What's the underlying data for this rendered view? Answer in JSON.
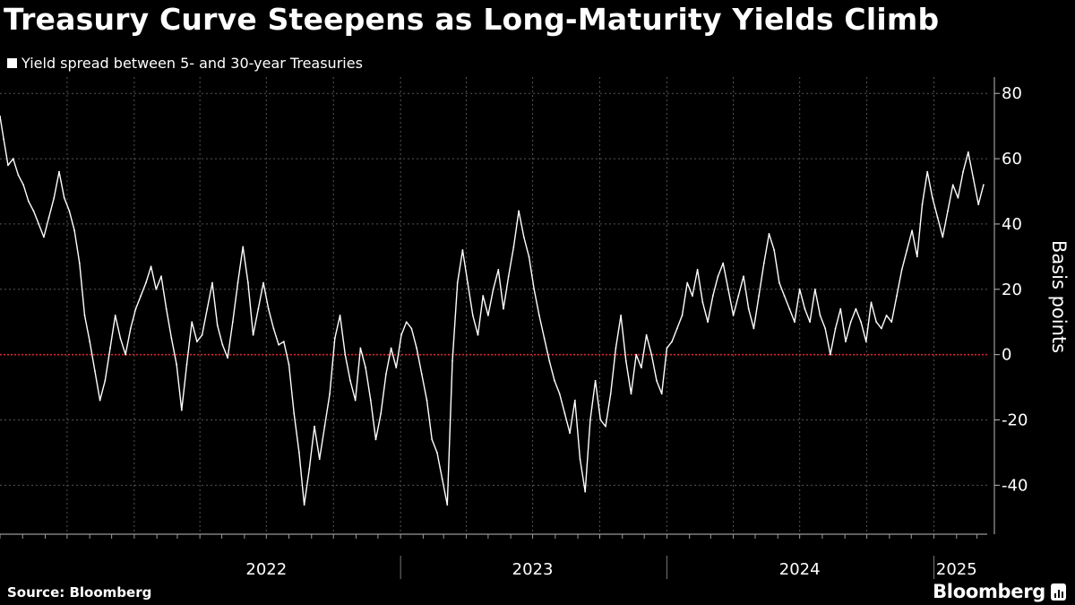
{
  "title": "Treasury Curve Steepens as Long-Maturity Yields Climb",
  "source": "Source: Bloomberg",
  "brand": "Bloomberg",
  "colors": {
    "background": "#000000",
    "series": "#ffffff",
    "zero_line": "#d6262b",
    "grid": "#555555"
  },
  "chart_data": {
    "type": "line",
    "legend": {
      "position": "top-left",
      "entries": [
        "Yield spread between 5- and 30-year Treasuries"
      ]
    },
    "ylabel": "Basis points",
    "ylim": [
      -55,
      85
    ],
    "yticks": [
      80,
      60,
      40,
      20,
      0,
      -20,
      -40
    ],
    "xlim": [
      "2021-07-01",
      "2025-03-15"
    ],
    "xtick_labels": [
      {
        "label": "2022",
        "date": "2022-07-01"
      },
      {
        "label": "2023",
        "date": "2023-07-01"
      },
      {
        "label": "2024",
        "date": "2024-07-01"
      },
      {
        "label": "2025",
        "date": "2025-02-01"
      }
    ],
    "year_dividers": [
      "2023-01-01",
      "2024-01-01",
      "2025-01-01"
    ],
    "grid": true,
    "reference_line": {
      "y": 0,
      "style": "dotted",
      "color": "#d6262b"
    },
    "series": [
      {
        "name": "Yield spread between 5- and 30-year Treasuries",
        "points": [
          [
            "2021-07-01",
            73
          ],
          [
            "2021-07-06",
            66
          ],
          [
            "2021-07-12",
            58
          ],
          [
            "2021-07-19",
            60
          ],
          [
            "2021-07-26",
            55
          ],
          [
            "2021-08-02",
            52
          ],
          [
            "2021-08-09",
            47
          ],
          [
            "2021-08-16",
            44
          ],
          [
            "2021-08-23",
            40
          ],
          [
            "2021-08-30",
            36
          ],
          [
            "2021-09-06",
            42
          ],
          [
            "2021-09-13",
            48
          ],
          [
            "2021-09-20",
            56
          ],
          [
            "2021-09-27",
            48
          ],
          [
            "2021-10-04",
            44
          ],
          [
            "2021-10-11",
            38
          ],
          [
            "2021-10-18",
            28
          ],
          [
            "2021-10-25",
            12
          ],
          [
            "2021-11-01",
            4
          ],
          [
            "2021-11-08",
            -5
          ],
          [
            "2021-11-15",
            -14
          ],
          [
            "2021-11-22",
            -8
          ],
          [
            "2021-11-29",
            2
          ],
          [
            "2021-12-06",
            12
          ],
          [
            "2021-12-13",
            5
          ],
          [
            "2021-12-20",
            0
          ],
          [
            "2021-12-27",
            8
          ],
          [
            "2022-01-03",
            14
          ],
          [
            "2022-01-10",
            18
          ],
          [
            "2022-01-17",
            22
          ],
          [
            "2022-01-24",
            27
          ],
          [
            "2022-01-31",
            20
          ],
          [
            "2022-02-07",
            24
          ],
          [
            "2022-02-14",
            14
          ],
          [
            "2022-02-21",
            5
          ],
          [
            "2022-02-28",
            -3
          ],
          [
            "2022-03-07",
            -17
          ],
          [
            "2022-03-14",
            -3
          ],
          [
            "2022-03-21",
            10
          ],
          [
            "2022-03-28",
            4
          ],
          [
            "2022-04-04",
            6
          ],
          [
            "2022-04-11",
            14
          ],
          [
            "2022-04-18",
            22
          ],
          [
            "2022-04-25",
            9
          ],
          [
            "2022-05-02",
            3
          ],
          [
            "2022-05-09",
            -1
          ],
          [
            "2022-05-16",
            10
          ],
          [
            "2022-05-23",
            22
          ],
          [
            "2022-05-30",
            33
          ],
          [
            "2022-06-06",
            22
          ],
          [
            "2022-06-13",
            6
          ],
          [
            "2022-06-20",
            14
          ],
          [
            "2022-06-27",
            22
          ],
          [
            "2022-07-04",
            14
          ],
          [
            "2022-07-11",
            8
          ],
          [
            "2022-07-18",
            3
          ],
          [
            "2022-07-25",
            4
          ],
          [
            "2022-08-01",
            -3
          ],
          [
            "2022-08-08",
            -18
          ],
          [
            "2022-08-15",
            -30
          ],
          [
            "2022-08-22",
            -46
          ],
          [
            "2022-08-29",
            -35
          ],
          [
            "2022-09-05",
            -22
          ],
          [
            "2022-09-12",
            -32
          ],
          [
            "2022-09-19",
            -22
          ],
          [
            "2022-09-26",
            -12
          ],
          [
            "2022-10-03",
            5
          ],
          [
            "2022-10-10",
            12
          ],
          [
            "2022-10-17",
            0
          ],
          [
            "2022-10-24",
            -8
          ],
          [
            "2022-10-31",
            -14
          ],
          [
            "2022-11-07",
            2
          ],
          [
            "2022-11-14",
            -4
          ],
          [
            "2022-11-21",
            -14
          ],
          [
            "2022-11-28",
            -26
          ],
          [
            "2022-12-05",
            -18
          ],
          [
            "2022-12-12",
            -6
          ],
          [
            "2022-12-19",
            2
          ],
          [
            "2022-12-26",
            -4
          ],
          [
            "2023-01-02",
            6
          ],
          [
            "2023-01-09",
            10
          ],
          [
            "2023-01-16",
            8
          ],
          [
            "2023-01-23",
            2
          ],
          [
            "2023-01-30",
            -6
          ],
          [
            "2023-02-06",
            -14
          ],
          [
            "2023-02-13",
            -26
          ],
          [
            "2023-02-20",
            -30
          ],
          [
            "2023-02-27",
            -38
          ],
          [
            "2023-03-06",
            -46
          ],
          [
            "2023-03-13",
            -2
          ],
          [
            "2023-03-20",
            22
          ],
          [
            "2023-03-27",
            32
          ],
          [
            "2023-04-03",
            22
          ],
          [
            "2023-04-10",
            12
          ],
          [
            "2023-04-17",
            6
          ],
          [
            "2023-04-24",
            18
          ],
          [
            "2023-05-01",
            12
          ],
          [
            "2023-05-08",
            20
          ],
          [
            "2023-05-15",
            26
          ],
          [
            "2023-05-22",
            14
          ],
          [
            "2023-05-29",
            24
          ],
          [
            "2023-06-05",
            33
          ],
          [
            "2023-06-12",
            44
          ],
          [
            "2023-06-19",
            36
          ],
          [
            "2023-06-26",
            30
          ],
          [
            "2023-07-03",
            20
          ],
          [
            "2023-07-10",
            12
          ],
          [
            "2023-07-17",
            5
          ],
          [
            "2023-07-24",
            -2
          ],
          [
            "2023-07-31",
            -8
          ],
          [
            "2023-08-07",
            -12
          ],
          [
            "2023-08-14",
            -18
          ],
          [
            "2023-08-21",
            -24
          ],
          [
            "2023-08-28",
            -14
          ],
          [
            "2023-09-04",
            -32
          ],
          [
            "2023-09-11",
            -42
          ],
          [
            "2023-09-18",
            -20
          ],
          [
            "2023-09-25",
            -8
          ],
          [
            "2023-10-02",
            -20
          ],
          [
            "2023-10-09",
            -22
          ],
          [
            "2023-10-16",
            -12
          ],
          [
            "2023-10-23",
            2
          ],
          [
            "2023-10-30",
            12
          ],
          [
            "2023-11-06",
            -2
          ],
          [
            "2023-11-13",
            -12
          ],
          [
            "2023-11-20",
            0
          ],
          [
            "2023-11-27",
            -4
          ],
          [
            "2023-12-04",
            6
          ],
          [
            "2023-12-11",
            0
          ],
          [
            "2023-12-18",
            -8
          ],
          [
            "2023-12-25",
            -12
          ],
          [
            "2024-01-01",
            2
          ],
          [
            "2024-01-08",
            4
          ],
          [
            "2024-01-15",
            8
          ],
          [
            "2024-01-22",
            12
          ],
          [
            "2024-01-29",
            22
          ],
          [
            "2024-02-05",
            18
          ],
          [
            "2024-02-12",
            26
          ],
          [
            "2024-02-19",
            16
          ],
          [
            "2024-02-26",
            10
          ],
          [
            "2024-03-04",
            18
          ],
          [
            "2024-03-11",
            24
          ],
          [
            "2024-03-18",
            28
          ],
          [
            "2024-03-25",
            20
          ],
          [
            "2024-04-01",
            12
          ],
          [
            "2024-04-08",
            18
          ],
          [
            "2024-04-15",
            24
          ],
          [
            "2024-04-22",
            14
          ],
          [
            "2024-04-29",
            8
          ],
          [
            "2024-05-06",
            18
          ],
          [
            "2024-05-13",
            28
          ],
          [
            "2024-05-20",
            37
          ],
          [
            "2024-05-27",
            32
          ],
          [
            "2024-06-03",
            22
          ],
          [
            "2024-06-10",
            18
          ],
          [
            "2024-06-17",
            14
          ],
          [
            "2024-06-24",
            10
          ],
          [
            "2024-07-01",
            20
          ],
          [
            "2024-07-08",
            14
          ],
          [
            "2024-07-15",
            10
          ],
          [
            "2024-07-22",
            20
          ],
          [
            "2024-07-29",
            12
          ],
          [
            "2024-08-05",
            8
          ],
          [
            "2024-08-12",
            0
          ],
          [
            "2024-08-19",
            8
          ],
          [
            "2024-08-26",
            14
          ],
          [
            "2024-09-02",
            4
          ],
          [
            "2024-09-09",
            10
          ],
          [
            "2024-09-16",
            14
          ],
          [
            "2024-09-23",
            10
          ],
          [
            "2024-09-30",
            4
          ],
          [
            "2024-10-07",
            16
          ],
          [
            "2024-10-14",
            10
          ],
          [
            "2024-10-21",
            8
          ],
          [
            "2024-10-28",
            12
          ],
          [
            "2024-11-04",
            10
          ],
          [
            "2024-11-11",
            18
          ],
          [
            "2024-11-18",
            26
          ],
          [
            "2024-11-25",
            32
          ],
          [
            "2024-12-02",
            38
          ],
          [
            "2024-12-09",
            30
          ],
          [
            "2024-12-16",
            46
          ],
          [
            "2024-12-23",
            56
          ],
          [
            "2024-12-30",
            48
          ],
          [
            "2025-01-06",
            42
          ],
          [
            "2025-01-13",
            36
          ],
          [
            "2025-01-20",
            44
          ],
          [
            "2025-01-27",
            52
          ],
          [
            "2025-02-03",
            48
          ],
          [
            "2025-02-10",
            56
          ],
          [
            "2025-02-17",
            62
          ],
          [
            "2025-02-24",
            54
          ],
          [
            "2025-03-03",
            46
          ],
          [
            "2025-03-10",
            52
          ]
        ]
      }
    ]
  }
}
